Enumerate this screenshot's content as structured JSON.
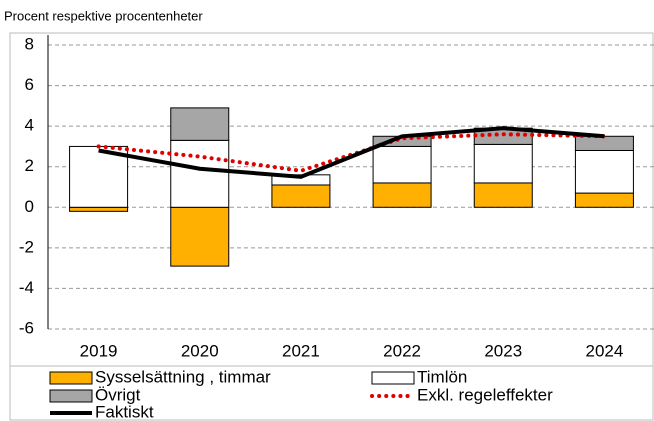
{
  "chart_data": {
    "type": "bar",
    "stacked": true,
    "subtitle": "Procent respektive procentenheter",
    "categories": [
      "2019",
      "2020",
      "2021",
      "2022",
      "2023",
      "2024"
    ],
    "series": [
      {
        "name": "Sysselsättning , timmar",
        "type": "bar",
        "color": "#ffb000",
        "values": [
          -0.2,
          -2.9,
          1.1,
          1.2,
          1.2,
          0.7
        ]
      },
      {
        "name": "Timlön",
        "type": "bar",
        "color": "#ffffff",
        "values": [
          3.0,
          3.3,
          0.5,
          1.8,
          1.9,
          2.1
        ]
      },
      {
        "name": "Övrigt",
        "type": "bar",
        "color": "#a6a6a6",
        "values": [
          0,
          1.6,
          0,
          0.5,
          0.8,
          0.7
        ]
      },
      {
        "name": "Exkl. regeleffekter",
        "type": "line",
        "style": "dotted",
        "color": "#e00000",
        "values": [
          3.0,
          2.5,
          1.8,
          3.4,
          3.6,
          3.5
        ]
      },
      {
        "name": "Faktiskt",
        "type": "line",
        "style": "solid",
        "color": "#000000",
        "values": [
          2.8,
          1.9,
          1.5,
          3.5,
          3.9,
          3.5
        ]
      }
    ],
    "ylim": [
      -6,
      8
    ],
    "yticks": [
      -6,
      -4,
      -2,
      0,
      2,
      4,
      6,
      8
    ],
    "grid": true,
    "legend": "bottom"
  }
}
